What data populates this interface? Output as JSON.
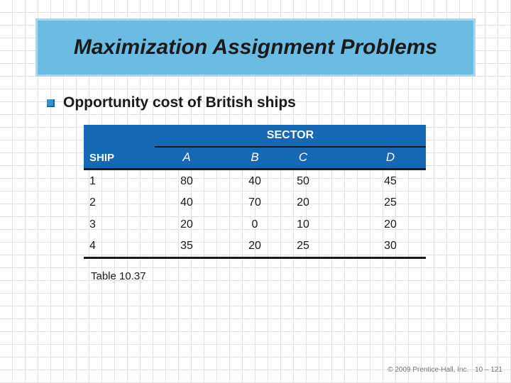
{
  "slide": {
    "title": "Maximization Assignment Problems",
    "bullet": "Opportunity cost of British ships",
    "caption": "Table 10.37",
    "footer_copyright": "© 2009 Prentice-Hall, Inc.",
    "footer_page": "10 – 121"
  },
  "table": {
    "group_header": "SECTOR",
    "row_header": "SHIP",
    "columns": [
      "A",
      "B",
      "C",
      "D"
    ],
    "rows": [
      {
        "ship": "1",
        "values": [
          "80",
          "40",
          "50",
          "45"
        ]
      },
      {
        "ship": "2",
        "values": [
          "40",
          "70",
          "20",
          "25"
        ]
      },
      {
        "ship": "3",
        "values": [
          "20",
          "0",
          "10",
          "20"
        ]
      },
      {
        "ship": "4",
        "values": [
          "35",
          "20",
          "25",
          "30"
        ]
      }
    ]
  },
  "colors": {
    "title_bg": "#6bbbe2",
    "table_header_bg": "#1568b4",
    "bullet": "#3a8fcf"
  }
}
